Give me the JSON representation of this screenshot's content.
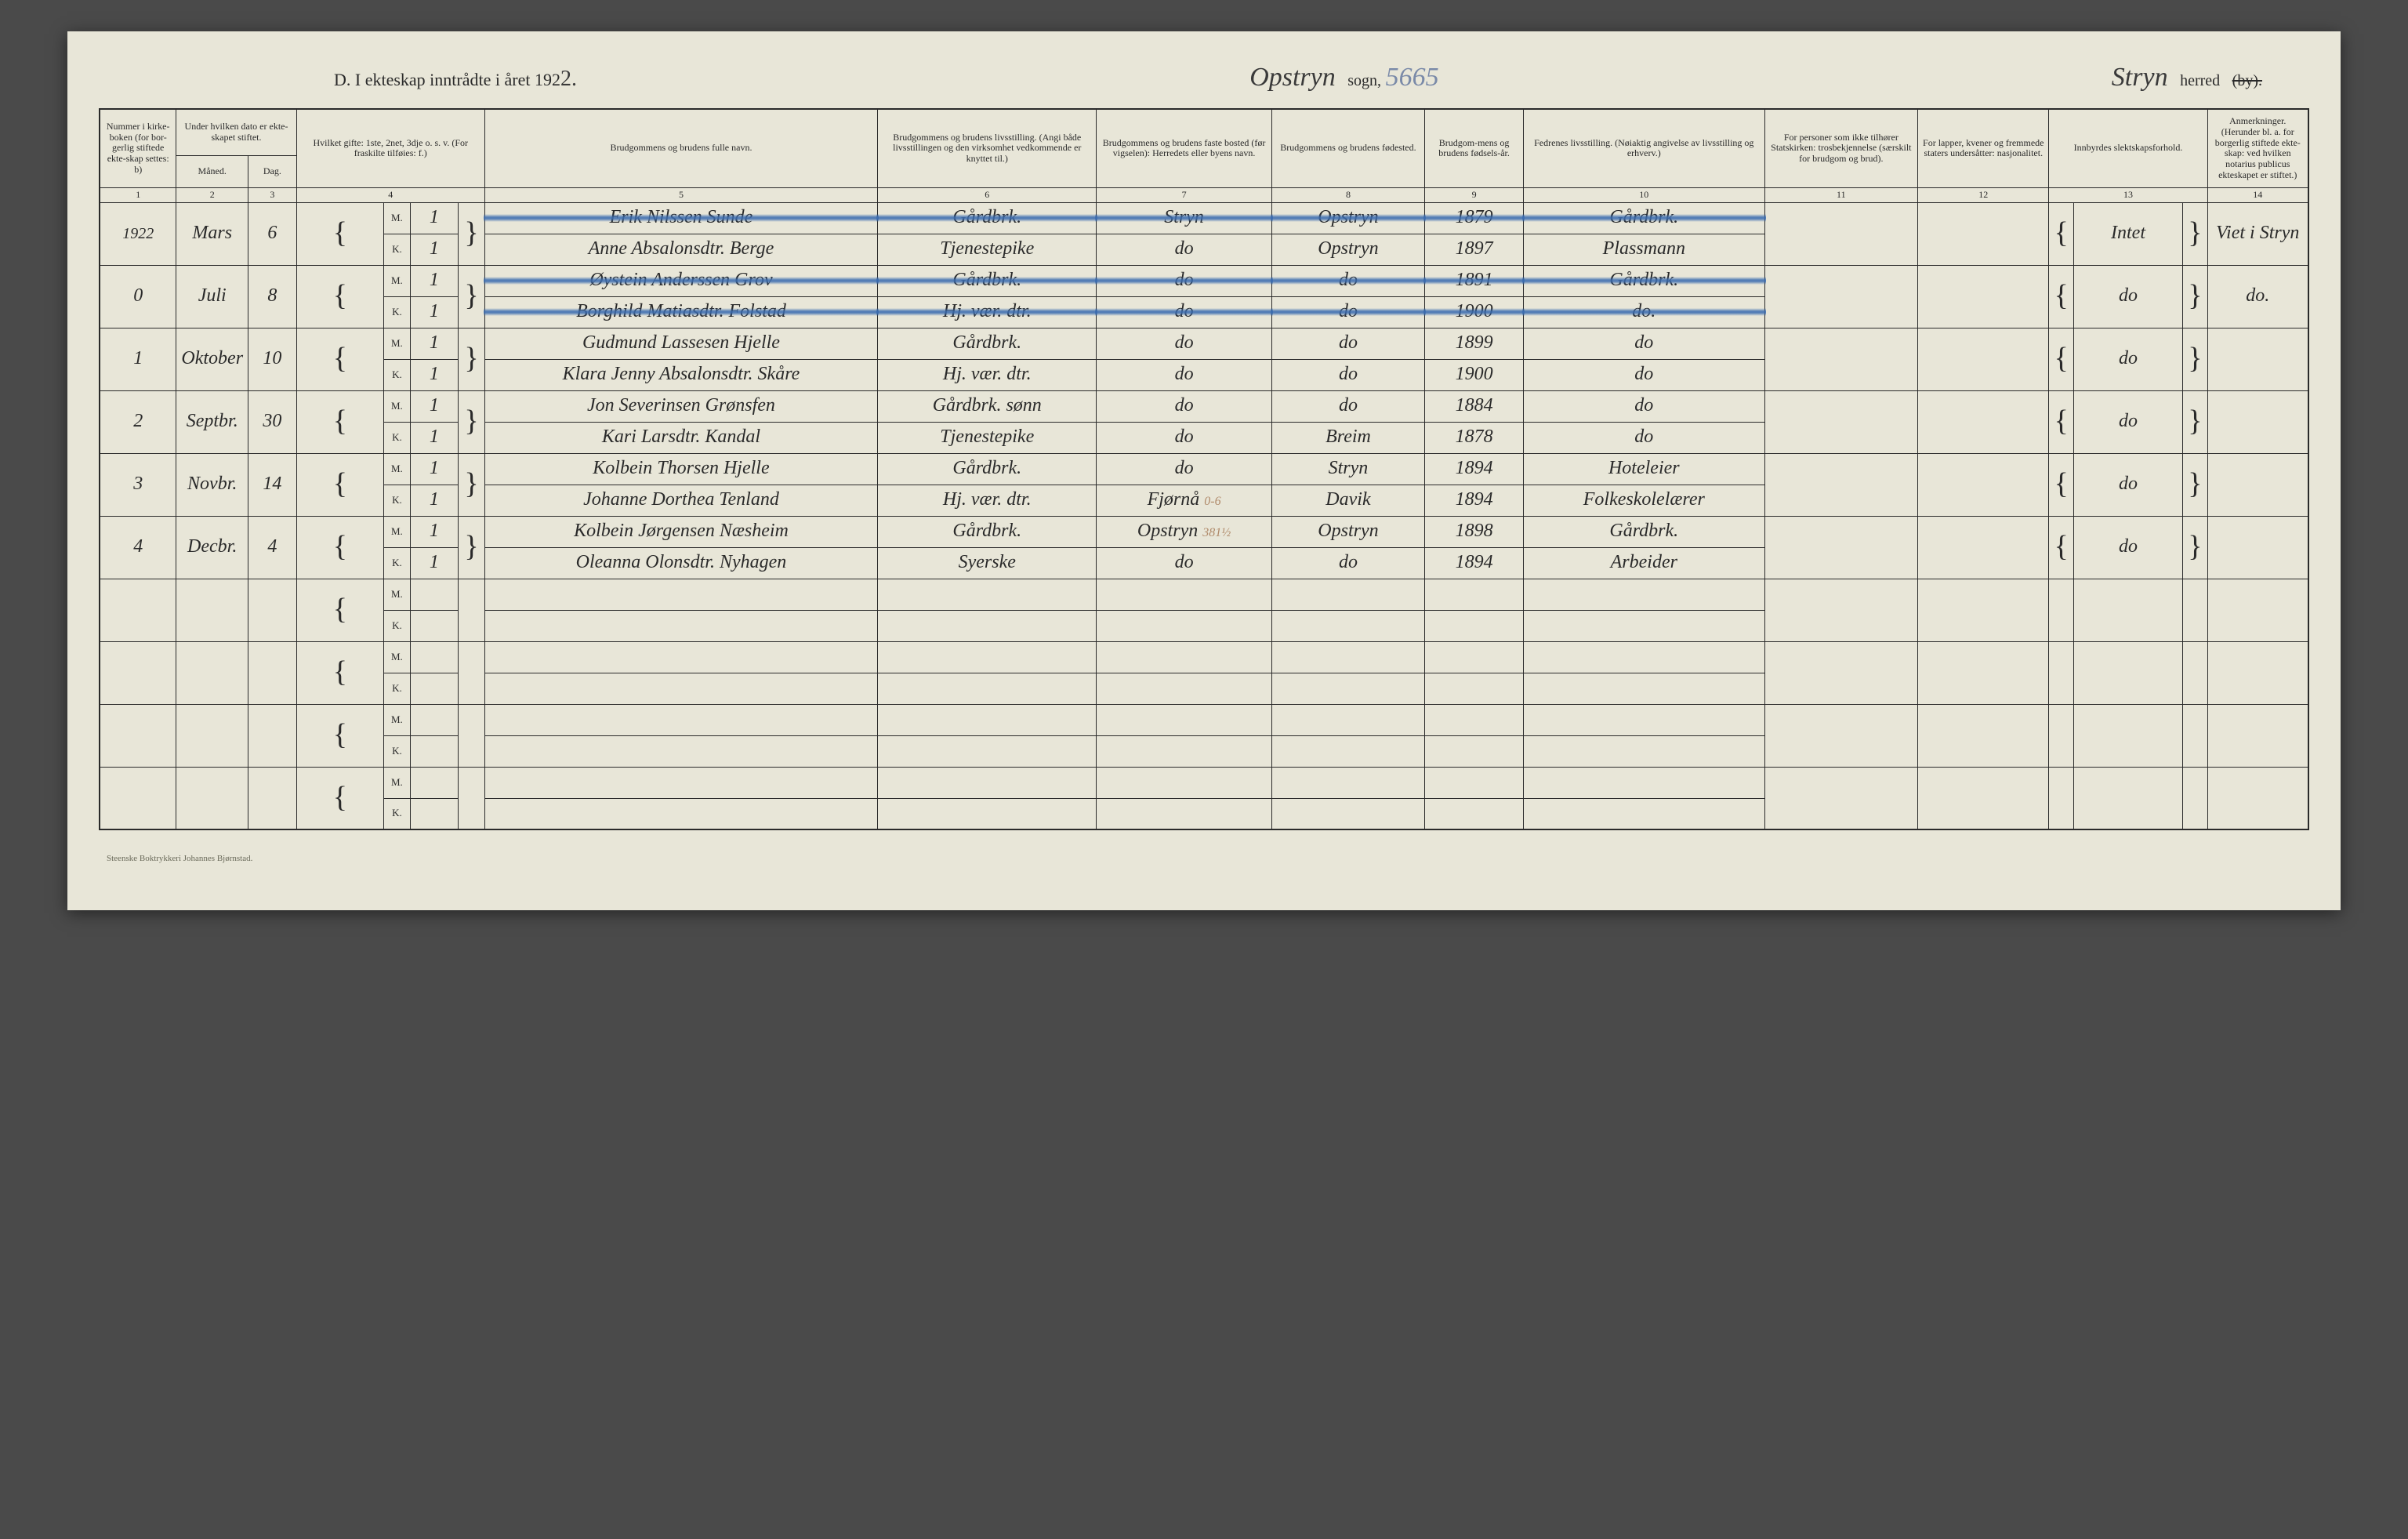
{
  "colors": {
    "page_bg": "#e8e6d8",
    "ink": "#2a2a2a",
    "pencil_blue": "#3a6cb0",
    "outer_bg": "#4a4a4a"
  },
  "typography": {
    "printed_font": "Georgia, serif",
    "handwritten_font": "Brush Script MT, cursive",
    "header_print_size_pt": 16,
    "header_script_size_pt": 26,
    "table_header_size_pt": 9,
    "handwriting_size_pt": 18
  },
  "header": {
    "section_letter": "D.",
    "title_prefix": "I ekteskap inntrådte i året 192",
    "year_suffix_handwritten": "2.",
    "sogn_handwritten": "Opstryn",
    "sogn_label": "sogn,",
    "pencil_number": "5665",
    "herred_handwritten": "Stryn",
    "herred_label": "herred",
    "herred_strike": "(by)."
  },
  "columns": {
    "1": "Nummer i kirke-boken (for bor-gerlig stiftede ekte-skap settes: b)",
    "2_3_top": "Under hvilken dato er ekte-skapet stiftet.",
    "2": "Måned.",
    "3": "Dag.",
    "4": "Hvilket gifte: 1ste, 2net, 3dje o. s. v. (For fraskilte tilføies: f.)",
    "5": "Brudgommens og brudens fulle navn.",
    "6": "Brudgommens og brudens livsstilling. (Angi både livsstillingen og den virksomhet vedkommende er knyttet til.)",
    "7": "Brudgommens og brudens faste bosted (før vigselen): Herredets eller byens navn.",
    "8": "Brudgommens og brudens fødested.",
    "9": "Brudgom-mens og brudens fødsels-år.",
    "10": "Fedrenes livsstilling. (Nøiaktig angivelse av livsstilling og erhverv.)",
    "11": "For personer som ikke tilhører Statskirken: trosbekjennelse (særskilt for brudgom og brud).",
    "12": "For lapper, kvener og fremmede staters undersåtter: nasjonalitet.",
    "13": "Innbyrdes slektskapsforhold.",
    "14": "Anmerkninger. (Herunder bl. a. for borgerlig stiftede ekte-skap: ved hvilken notarius publicus ekteskapet er stiftet.)"
  },
  "colnum_row": [
    "1",
    "2",
    "3",
    "4",
    "5",
    "6",
    "7",
    "8",
    "9",
    "10",
    "11",
    "12",
    "13",
    "14"
  ],
  "mk_labels": {
    "m": "M.",
    "k": "K."
  },
  "rows": [
    {
      "no": "",
      "year_above": "1922",
      "month": "Mars",
      "day": "6",
      "blue_struck": true,
      "m": {
        "gifte": "1",
        "navn": "Erik Nilssen Sunde",
        "stilling": "Gårdbrk.",
        "bosted": "Stryn",
        "fodested": "Opstryn",
        "aar": "1879",
        "far": "Gårdbrk."
      },
      "k": {
        "gifte": "1",
        "navn": "Anne Absalonsdtr. Berge",
        "stilling": "Tjenestepike",
        "bosted": "do",
        "fodested": "Opstryn",
        "aar": "1897",
        "far": "Plassmann"
      },
      "c11": "",
      "c12": "",
      "c13": "Intet",
      "c14": "Viet i Stryn"
    },
    {
      "no": "0",
      "month": "Juli",
      "day": "8",
      "blue_struck": true,
      "m": {
        "gifte": "1",
        "navn": "Øystein Anderssen Grov",
        "stilling": "Gårdbrk.",
        "bosted": "do",
        "fodested": "do",
        "aar": "1891",
        "far": "Gårdbrk."
      },
      "k": {
        "gifte": "1",
        "navn": "Borghild Matiasdtr. Folstad",
        "stilling": "Hj. vær. dtr.",
        "bosted": "do",
        "fodested": "do",
        "aar": "1900",
        "far": "do."
      },
      "c11": "",
      "c12": "",
      "c13": "do",
      "c14": "do."
    },
    {
      "no": "1",
      "month": "Oktober",
      "day": "10",
      "blue_struck": false,
      "m": {
        "gifte": "1",
        "navn": "Gudmund Lassesen Hjelle",
        "stilling": "Gårdbrk.",
        "bosted": "do",
        "fodested": "do",
        "aar": "1899",
        "far": "do"
      },
      "k": {
        "gifte": "1",
        "navn": "Klara Jenny Absalonsdtr. Skåre",
        "stilling": "Hj. vær. dtr.",
        "bosted": "do",
        "fodested": "do",
        "aar": "1900",
        "far": "do"
      },
      "c11": "",
      "c12": "",
      "c13": "do",
      "c14": ""
    },
    {
      "no": "2",
      "month": "Septbr.",
      "day": "30",
      "blue_struck": false,
      "m": {
        "gifte": "1",
        "navn": "Jon Severinsen Grønsfen",
        "stilling": "Gårdbrk. sønn",
        "bosted": "do",
        "fodested": "do",
        "aar": "1884",
        "far": "do"
      },
      "k": {
        "gifte": "1",
        "navn": "Kari Larsdtr. Kandal",
        "stilling": "Tjenestepike",
        "bosted": "do",
        "fodested": "Breim",
        "aar": "1878",
        "far": "do"
      },
      "c11": "",
      "c12": "",
      "c13": "do",
      "c14": ""
    },
    {
      "no": "3",
      "month": "Novbr.",
      "day": "14",
      "blue_struck": false,
      "m": {
        "gifte": "1",
        "navn": "Kolbein Thorsen Hjelle",
        "stilling": "Gårdbrk.",
        "bosted": "do",
        "fodested": "Stryn",
        "aar": "1894",
        "far": "Hoteleier"
      },
      "k": {
        "gifte": "1",
        "navn": "Johanne Dorthea Tenland",
        "stilling": "Hj. vær. dtr.",
        "bosted": "Fjørnå",
        "bosted_pencil": "0-6",
        "fodested": "Davik",
        "aar": "1894",
        "far": "Folkeskolelærer"
      },
      "c11": "",
      "c12": "",
      "c13": "do",
      "c14": ""
    },
    {
      "no": "4",
      "month": "Decbr.",
      "day": "4",
      "blue_struck": false,
      "m": {
        "gifte": "1",
        "navn": "Kolbein Jørgensen Næsheim",
        "stilling": "Gårdbrk.",
        "bosted": "Opstryn",
        "bosted_pencil": "381½",
        "fodested": "Opstryn",
        "aar": "1898",
        "far": "Gårdbrk."
      },
      "k": {
        "gifte": "1",
        "navn": "Oleanna Olonsdtr. Nyhagen",
        "stilling": "Syerske",
        "bosted": "do",
        "fodested": "do",
        "aar": "1894",
        "far": "Arbeider"
      },
      "c11": "",
      "c12": "",
      "c13": "do",
      "c14": ""
    }
  ],
  "empty_pairs": 4,
  "footer": "Steenske Boktrykkeri Johannes Bjørnstad."
}
